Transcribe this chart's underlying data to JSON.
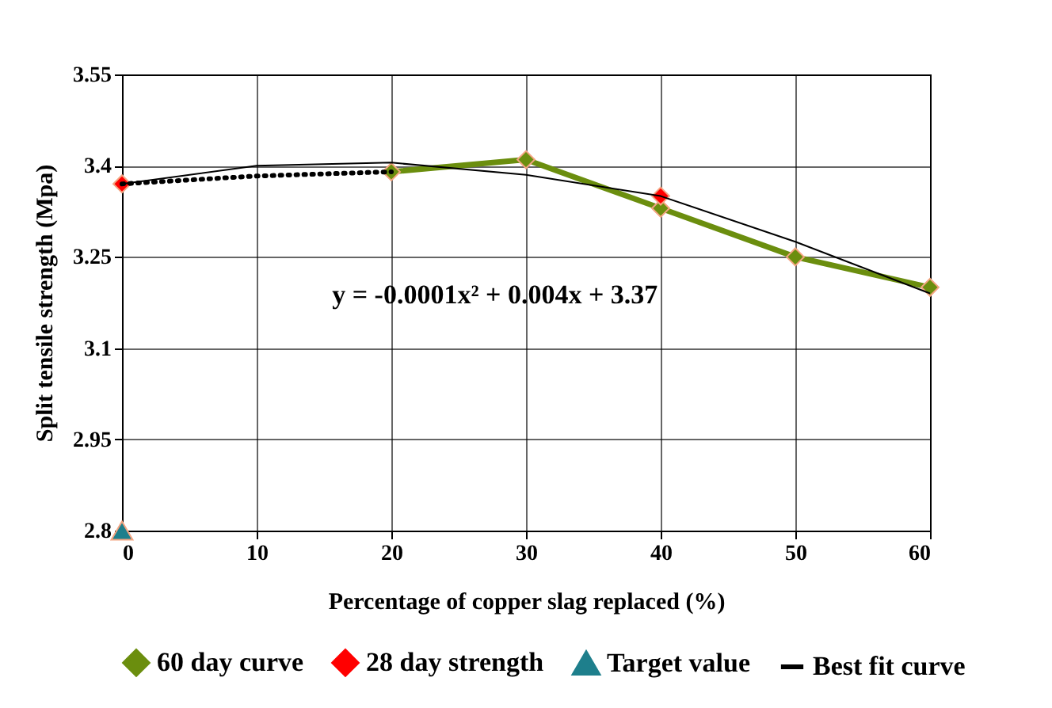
{
  "chart_data": {
    "type": "line",
    "xlabel": "Percentage  of copper slag replaced  (%)",
    "ylabel": "Split tensile strength  (Mpa)",
    "xlim": [
      0,
      60
    ],
    "xticks": [
      0,
      10,
      20,
      30,
      40,
      50,
      60
    ],
    "ylim": [
      2.8,
      3.55
    ],
    "yticks": [
      2.8,
      2.95,
      3.1,
      3.25,
      3.4,
      3.55
    ],
    "grid": true,
    "legend": "bottom",
    "annotations": [
      "y = -0.0001x² + 0.004x + 3.37"
    ],
    "series": [
      {
        "name": "60 day curve",
        "color": "#6b8e0e",
        "marker": "diamond",
        "x": [
          20,
          30,
          40,
          50,
          60
        ],
        "values": [
          3.39,
          3.41,
          3.33,
          3.25,
          3.2
        ]
      },
      {
        "name": "28 day strength",
        "type": "scatter",
        "color": "#ff0000",
        "marker": "diamond",
        "x": [
          0,
          40
        ],
        "values": [
          3.37,
          3.35
        ]
      },
      {
        "name": "Target value",
        "type": "scatter",
        "color": "#1e7f8c",
        "marker": "triangle",
        "x": [
          0
        ],
        "values": [
          2.8
        ]
      },
      {
        "name": "Best fit curve",
        "color": "#000000",
        "marker": "none",
        "x": [
          0,
          10,
          20,
          30,
          40,
          50,
          60
        ],
        "values": [
          3.37,
          3.4,
          3.405,
          3.385,
          3.35,
          3.275,
          3.19
        ]
      },
      {
        "color": "#000000",
        "line_style": "dotted",
        "x": [
          0,
          10,
          20
        ],
        "values": [
          3.37,
          3.383,
          3.39
        ]
      }
    ]
  }
}
